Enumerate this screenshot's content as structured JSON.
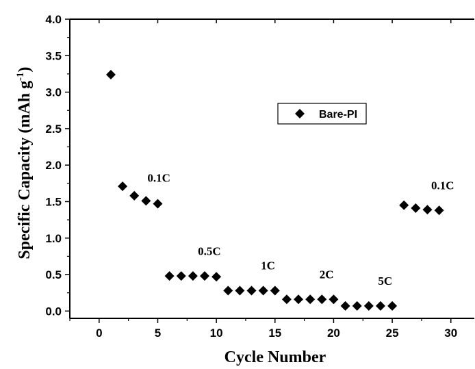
{
  "chart_data": {
    "type": "scatter",
    "xlabel": "Cycle Number",
    "ylabel": {
      "main": "Specific Capacity (mAh g",
      "sup": "-1",
      "close": ")"
    },
    "xlim": [
      -2.5,
      32
    ],
    "ylim": [
      -0.1,
      4.0
    ],
    "xticks": [
      0,
      5,
      10,
      15,
      20,
      25,
      30
    ],
    "xtick_labels": [
      "0",
      "5",
      "10",
      "15",
      "20",
      "25",
      "30"
    ],
    "yticks": [
      0.0,
      0.5,
      1.0,
      1.5,
      2.0,
      2.5,
      3.0,
      3.5,
      4.0
    ],
    "ytick_labels": [
      "0.0",
      "0.5",
      "1.0",
      "1.5",
      "2.0",
      "2.5",
      "3.0",
      "3.5",
      "4.0"
    ],
    "grid": false,
    "legend_position": "center-right",
    "series": [
      {
        "name": "Bare-PI",
        "marker": "diamond",
        "color": "#000000",
        "x": [
          1,
          2,
          3,
          4,
          5,
          6,
          7,
          8,
          9,
          10,
          11,
          12,
          13,
          14,
          15,
          16,
          17,
          18,
          19,
          20,
          21,
          22,
          23,
          24,
          25,
          26,
          27,
          28,
          29
        ],
        "y": [
          3.24,
          1.71,
          1.58,
          1.51,
          1.47,
          0.48,
          0.48,
          0.48,
          0.48,
          0.47,
          0.28,
          0.28,
          0.28,
          0.28,
          0.28,
          0.16,
          0.16,
          0.16,
          0.16,
          0.16,
          0.07,
          0.07,
          0.07,
          0.07,
          0.07,
          1.45,
          1.41,
          1.39,
          1.38
        ]
      }
    ],
    "annotations": [
      {
        "text": "0.1C",
        "x": 5.1,
        "y": 1.77
      },
      {
        "text": "0.5C",
        "x": 9.4,
        "y": 0.77
      },
      {
        "text": "1C",
        "x": 14.4,
        "y": 0.57
      },
      {
        "text": "2C",
        "x": 19.4,
        "y": 0.45
      },
      {
        "text": "5C",
        "x": 24.4,
        "y": 0.36
      },
      {
        "text": "0.1C",
        "x": 29.3,
        "y": 1.67
      }
    ]
  }
}
